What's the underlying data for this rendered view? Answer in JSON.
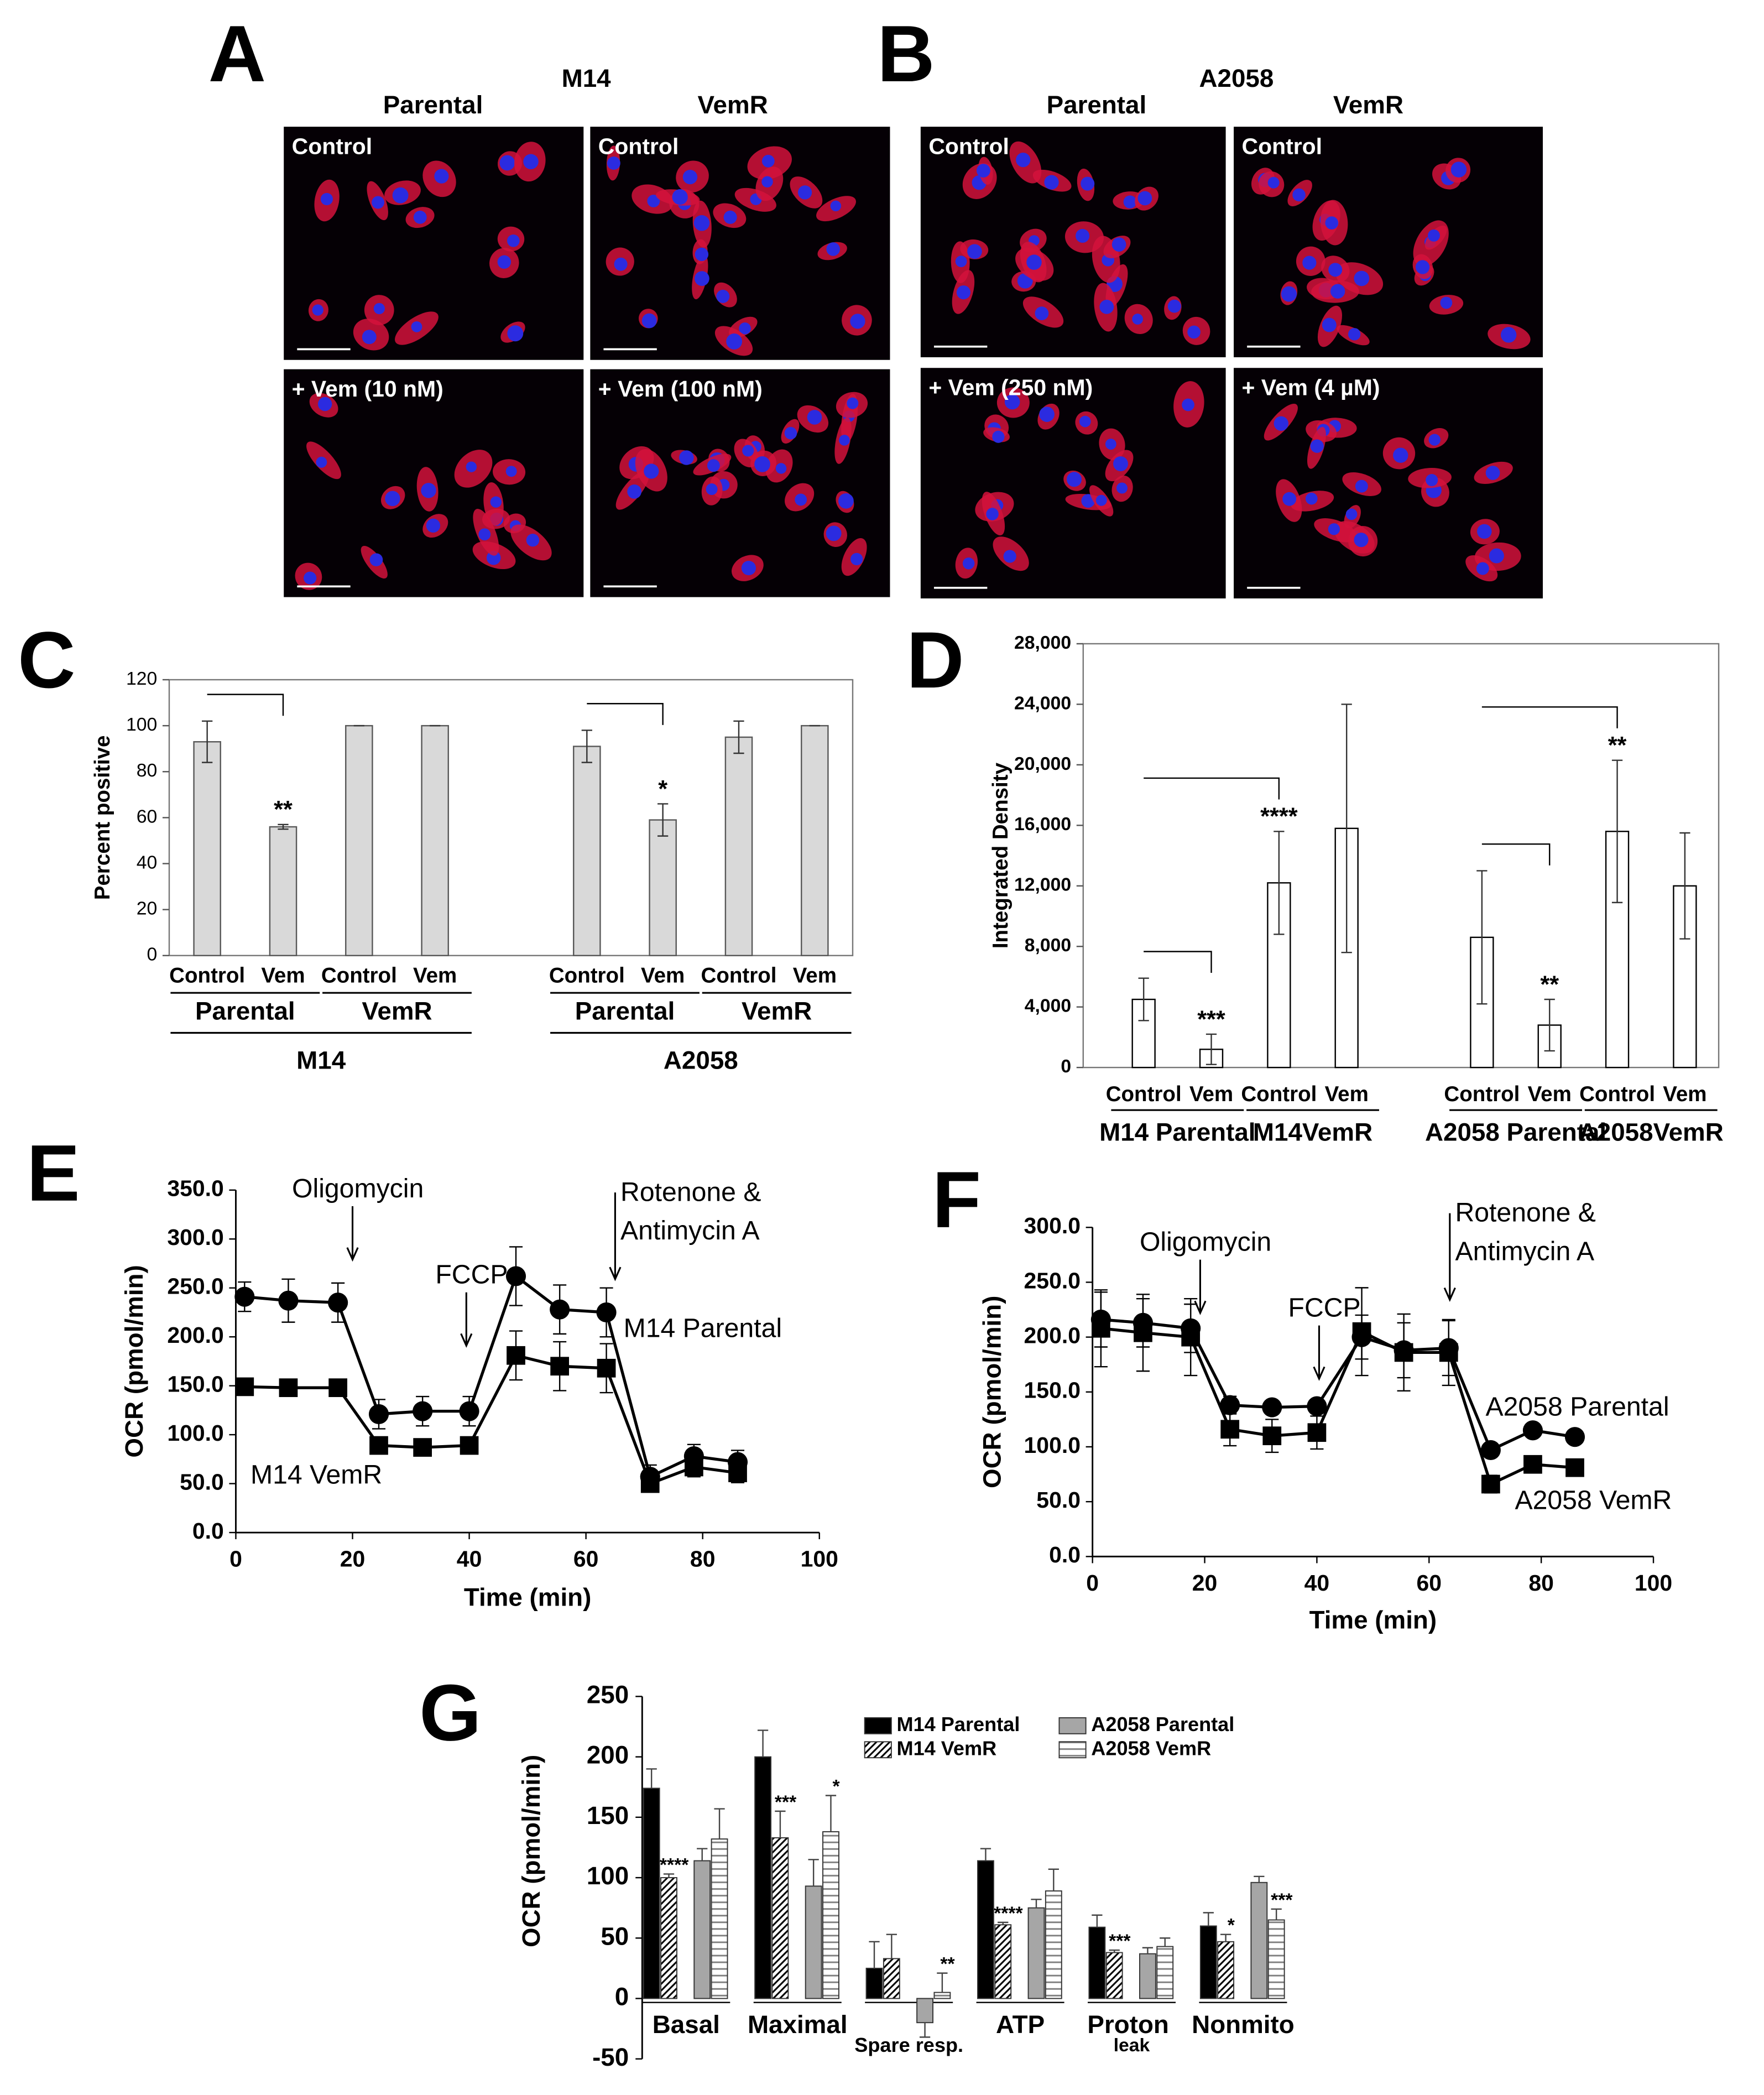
{
  "panels": {
    "A": {
      "letter": "A",
      "cell_line": "M14",
      "columns": [
        "Parental",
        "VemR"
      ],
      "tiles": [
        "Control",
        "Control",
        "+ Vem (10 nM)",
        "+ Vem (100 nM)"
      ]
    },
    "B": {
      "letter": "B",
      "cell_line": "A2058",
      "columns": [
        "Parental",
        "VemR"
      ],
      "tiles": [
        "Control",
        "Control",
        "+ Vem (250 nM)",
        "+ Vem (4 µM)"
      ]
    }
  },
  "chart_data": [
    {
      "letter": "C",
      "type": "bar",
      "ylabel": "Percent positive",
      "categories": [
        "Control",
        "Vem",
        "Control",
        "Vem",
        null,
        "Control",
        "Vem",
        "Control",
        "Vem"
      ],
      "values": [
        93,
        56,
        100,
        100,
        null,
        91,
        59,
        95,
        100
      ],
      "errors": [
        9,
        1,
        0,
        0,
        null,
        7,
        7,
        7,
        0
      ],
      "color": "#d9d9d9",
      "edgecolor": "#595959",
      "ylim": [
        0,
        120
      ],
      "yticks": [
        0,
        20,
        40,
        60,
        80,
        100,
        120
      ],
      "subgroups": [
        "Parental",
        "VemR",
        "Parental",
        "VemR"
      ],
      "groups": [
        "M14",
        "A2058"
      ],
      "comparisons": [
        {
          "from": 0,
          "to": 1,
          "label": "**"
        },
        {
          "from": 5,
          "to": 6,
          "label": "*"
        }
      ]
    },
    {
      "letter": "D",
      "type": "bar",
      "ylabel": "Integrated Density",
      "categories": [
        "Control",
        "Vem",
        "Control",
        "Vem",
        null,
        "Control",
        "Vem",
        "Control",
        "Vem"
      ],
      "values": [
        4500,
        1200,
        12200,
        15800,
        null,
        8600,
        2800,
        15600,
        12000
      ],
      "errors": [
        1400,
        1000,
        3400,
        8200,
        null,
        4400,
        1700,
        4700,
        3500
      ],
      "color": "#ffffff",
      "edgecolor": "#000000",
      "ylim": [
        0,
        28000
      ],
      "yticks": [
        0,
        {
          "value": 4000,
          "label": "4,000"
        },
        {
          "value": 8000,
          "label": "8,000"
        },
        {
          "value": 12000,
          "label": "12,000"
        },
        {
          "value": 16000,
          "label": "16,000"
        },
        {
          "value": 20000,
          "label": "20,000"
        },
        {
          "value": 24000,
          "label": "24,000"
        },
        {
          "value": 28000,
          "label": "28,000"
        }
      ],
      "subgroups": [
        "M14 Parental",
        "M14VemR",
        "A2058 Parental",
        "A2058VemR"
      ],
      "comparisons": [
        {
          "from": 0,
          "to": 1,
          "label": "***"
        },
        {
          "from": 0,
          "to": 2,
          "label": "****"
        },
        {
          "from": 5,
          "to": 6,
          "label": "**"
        },
        {
          "from": 5,
          "to": 7,
          "label": "**"
        }
      ]
    },
    {
      "letter": "E",
      "type": "line",
      "xlabel": "Time (min)",
      "ylabel": "OCR (pmol/min)",
      "x": [
        1.5,
        9,
        17.5,
        24.5,
        32,
        40,
        48,
        55.5,
        63.5,
        71,
        78.5,
        86
      ],
      "series": [
        {
          "name": "M14 Parental",
          "color": "#000000",
          "marker": "circle",
          "values": [
            241,
            237,
            235,
            121,
            124,
            124,
            262,
            228,
            225,
            57,
            78,
            72
          ],
          "errors": [
            15,
            22,
            20,
            15,
            15,
            15,
            30,
            25,
            25,
            12,
            12,
            12
          ]
        },
        {
          "name": "M14 VemR",
          "color": "#000000",
          "marker": "square",
          "values": [
            149,
            148,
            148,
            89,
            87,
            89,
            181,
            170,
            168,
            50,
            67,
            61
          ],
          "errors": [
            5,
            5,
            5,
            5,
            5,
            5,
            25,
            25,
            25,
            5,
            10,
            10
          ]
        }
      ],
      "xlim": [
        0,
        100
      ],
      "xticks": [
        0,
        20,
        40,
        60,
        80,
        100
      ],
      "ylim": [
        0,
        350
      ],
      "yticks": [
        {
          "value": 0,
          "label": "0.0"
        },
        {
          "value": 50,
          "label": "50.0"
        },
        {
          "value": 100,
          "label": "100.0"
        },
        {
          "value": 150,
          "label": "150.0"
        },
        {
          "value": 200,
          "label": "200.0"
        },
        {
          "value": 250,
          "label": "250.0"
        },
        {
          "value": 300,
          "label": "300.0"
        },
        {
          "value": 350,
          "label": "350.0"
        }
      ],
      "annotations": [
        {
          "text": "Oligomycin",
          "x": 20,
          "y": 279
        },
        {
          "text": "FCCP",
          "x": 39.5,
          "y": 191
        },
        {
          "text": [
            "Rotenone &",
            "Antimycin A"
          ],
          "x": 65,
          "y": 259
        }
      ]
    },
    {
      "letter": "F",
      "type": "line",
      "xlabel": "Time (min)",
      "ylabel": "OCR (pmol/min)",
      "x": [
        1.5,
        9,
        17.5,
        24.5,
        32,
        40,
        48,
        55.5,
        63.5,
        71,
        78.5,
        86
      ],
      "series": [
        {
          "name": "A2058 Parental",
          "color": "#000000",
          "marker": "circle",
          "values": [
            216,
            213,
            208,
            138,
            136,
            137,
            200,
            188,
            190,
            97,
            115,
            109
          ],
          "errors": [
            25,
            22,
            22,
            8,
            5,
            5,
            20,
            25,
            25,
            5,
            5,
            5
          ]
        },
        {
          "name": "A2058 VemR",
          "color": "#000000",
          "marker": "square",
          "values": [
            208,
            204,
            200,
            116,
            110,
            113,
            205,
            186,
            186,
            66,
            84,
            81
          ],
          "errors": [
            35,
            35,
            35,
            15,
            15,
            15,
            40,
            35,
            30,
            8,
            5,
            5
          ]
        }
      ],
      "xlim": [
        0,
        100
      ],
      "xticks": [
        0,
        20,
        40,
        60,
        80,
        100
      ],
      "ylim": [
        0,
        300
      ],
      "yticks": [
        {
          "value": 0,
          "label": "0.0"
        },
        {
          "value": 50,
          "label": "50.0"
        },
        {
          "value": 100,
          "label": "100.0"
        },
        {
          "value": 150,
          "label": "150.0"
        },
        {
          "value": 200,
          "label": "200.0"
        },
        {
          "value": 250,
          "label": "250.0"
        },
        {
          "value": 300,
          "label": "300.0"
        }
      ],
      "annotations": [
        {
          "text": "Oligomycin",
          "x": 19.2,
          "y": 222
        },
        {
          "text": "FCCP",
          "x": 40.4,
          "y": 162
        },
        {
          "text": [
            "Rotenone &",
            "Antimycin A"
          ],
          "x": 63.7,
          "y": 234
        }
      ]
    },
    {
      "letter": "G",
      "type": "grouped_bar",
      "ylabel": "OCR (pmol/min)",
      "categories": [
        "Basal",
        "Maximal",
        "Spare resp.",
        "ATP",
        "Proton leak",
        "Nonmito"
      ],
      "series": [
        {
          "name": "M14 Parental",
          "color": "#000000",
          "values": [
            174,
            200,
            25,
            114,
            59,
            60
          ],
          "errors": [
            16,
            22,
            22,
            10,
            10,
            11
          ]
        },
        {
          "name": "M14 VemR",
          "color": "#000000",
          "pattern": "diagonal",
          "values": [
            100,
            133,
            33,
            61,
            38,
            47
          ],
          "errors": [
            3,
            22,
            20,
            2,
            2,
            6
          ],
          "annotations": [
            "****",
            "***",
            null,
            "****",
            "***",
            "*"
          ]
        },
        {
          "name": "A2058 Parental",
          "color": "#a6a6a6",
          "values": [
            114,
            93,
            -20,
            75,
            37,
            96
          ],
          "errors": [
            10,
            22,
            12,
            7,
            5,
            5
          ]
        },
        {
          "name": "A2058 VemR",
          "color": "#7f7f7f",
          "pattern": "horizontal",
          "values": [
            132,
            138,
            5,
            89,
            43,
            65
          ],
          "errors": [
            25,
            30,
            16,
            18,
            7,
            9
          ],
          "annotations": [
            null,
            "*",
            "**",
            null,
            null,
            "***"
          ]
        }
      ],
      "ylim": [
        -50,
        250
      ],
      "yticks": [
        -50,
        0,
        50,
        100,
        150,
        200,
        250
      ],
      "legend": "top-right"
    }
  ]
}
